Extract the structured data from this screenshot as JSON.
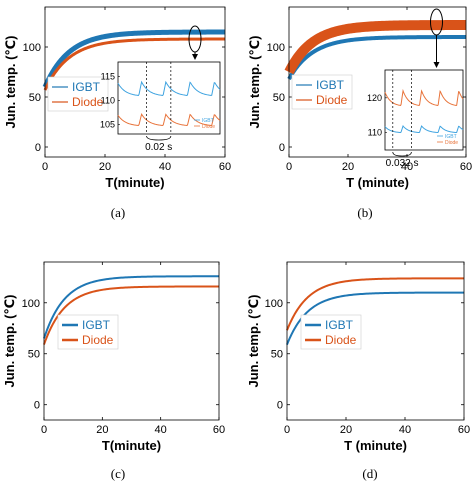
{
  "colors": {
    "igbt": "#1f77b4",
    "diode": "#d95319",
    "igbt_inset": "#3ea3e0",
    "diode_inset": "#e8733a",
    "axis": "#000000"
  },
  "chart_data": [
    {
      "id": "a",
      "type": "line",
      "caption": "(a)",
      "xlabel": "T(minute)",
      "ylabel": "Jun. temp. (℃)",
      "xlim": [
        0,
        60
      ],
      "ylim": [
        -10,
        140
      ],
      "xticks": [
        0,
        20,
        40,
        60
      ],
      "yticks": [
        0,
        50,
        100
      ],
      "band": true,
      "series": [
        {
          "name": "IGBT",
          "color_key": "igbt",
          "start": 60,
          "final": 115,
          "tau": 8,
          "width": 5
        },
        {
          "name": "Diode",
          "color_key": "diode",
          "start": 57,
          "final": 108,
          "tau": 8,
          "width": 3
        }
      ],
      "legend": "bottom-left",
      "inset": {
        "yticks": [
          105,
          110,
          115
        ],
        "ylim": [
          103,
          118
        ],
        "annotation": "0.02 s",
        "legend": [
          "IGBT",
          "Diode"
        ],
        "series": [
          {
            "name": "IGBT",
            "base": 112.5,
            "amp": 3.0,
            "period": 0.02
          },
          {
            "name": "Diode",
            "base": 106,
            "amp": 2.5,
            "period": 0.02
          }
        ]
      }
    },
    {
      "id": "b",
      "type": "line",
      "caption": "(b)",
      "xlabel": "T (minute)",
      "ylabel": "Jun. temp. (℃)",
      "xlim": [
        0,
        60
      ],
      "ylim": [
        -10,
        140
      ],
      "xticks": [
        0,
        20,
        40,
        60
      ],
      "yticks": [
        0,
        50,
        100
      ],
      "band": true,
      "series": [
        {
          "name": "IGBT",
          "color_key": "igbt",
          "start": 68,
          "final": 110,
          "tau": 8,
          "width": 4
        },
        {
          "name": "Diode",
          "color_key": "diode",
          "start": 75,
          "final": 122,
          "tau": 8,
          "width": 10
        }
      ],
      "legend": "bottom-left",
      "inset": {
        "yticks": [
          110,
          120
        ],
        "ylim": [
          105,
          128
        ],
        "annotation": "0.032 s",
        "legend": [
          "IGBT",
          "Diode"
        ],
        "series": [
          {
            "name": "IGBT",
            "base": 111,
            "amp": 2.0,
            "period": 0.032
          },
          {
            "name": "Diode",
            "base": 120,
            "amp": 4.5,
            "period": 0.032
          }
        ]
      }
    },
    {
      "id": "c",
      "type": "line",
      "caption": "(c)",
      "xlabel": "T(minute)",
      "ylabel": "Jun. temp. (℃)",
      "xlim": [
        0,
        60
      ],
      "ylim": [
        -15,
        140
      ],
      "xticks": [
        0,
        20,
        40,
        60
      ],
      "yticks": [
        0,
        50,
        100
      ],
      "band": false,
      "series": [
        {
          "name": "IGBT",
          "color_key": "igbt",
          "start": 65,
          "final": 126,
          "tau": 7,
          "width": 2
        },
        {
          "name": "Diode",
          "color_key": "diode",
          "start": 59,
          "final": 116,
          "tau": 7,
          "width": 2
        }
      ],
      "legend": "bottom-left"
    },
    {
      "id": "d",
      "type": "line",
      "caption": "(d)",
      "xlabel": "T (minute)",
      "ylabel": "Jun. temp. (℃)",
      "xlim": [
        0,
        60
      ],
      "ylim": [
        -15,
        140
      ],
      "xticks": [
        0,
        20,
        40,
        60
      ],
      "yticks": [
        0,
        50,
        100
      ],
      "band": false,
      "series": [
        {
          "name": "IGBT",
          "color_key": "igbt",
          "start": 59,
          "final": 110,
          "tau": 7,
          "width": 2
        },
        {
          "name": "Diode",
          "color_key": "diode",
          "start": 73,
          "final": 124,
          "tau": 7,
          "width": 2
        }
      ],
      "legend": "bottom-left"
    }
  ]
}
